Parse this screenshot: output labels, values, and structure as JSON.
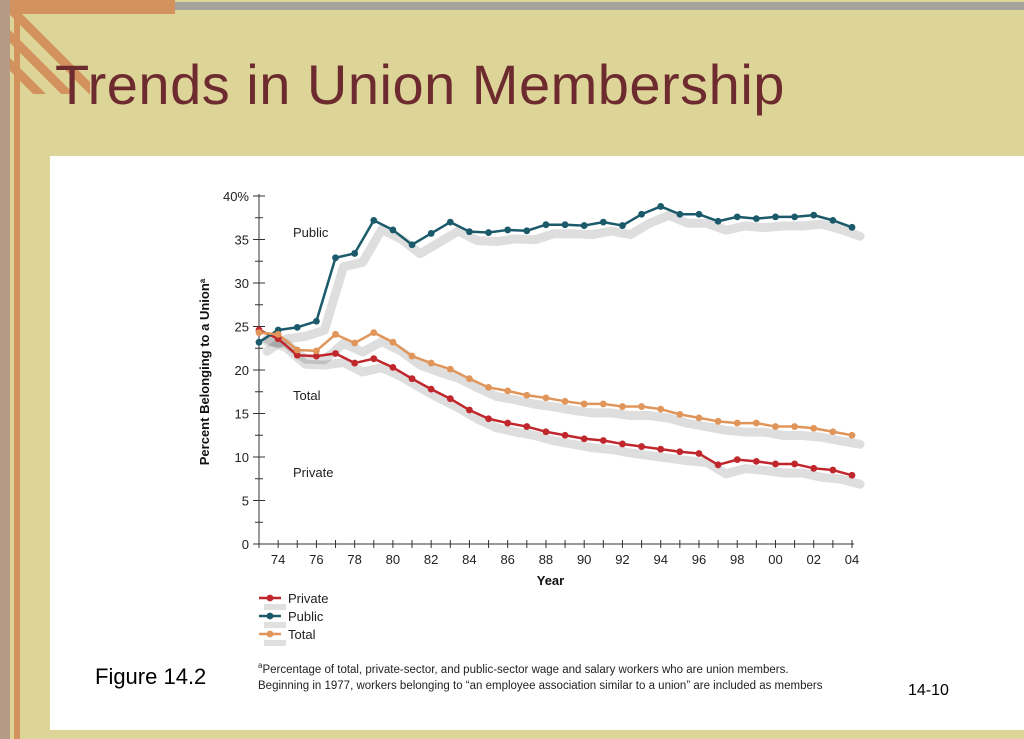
{
  "slide": {
    "title": "Trends in Union Membership",
    "figure_label": "Figure 14.2",
    "page_number": "14-10",
    "footnote_mark": "a",
    "footnote_line1": "Percentage of total, private-sector, and public-sector wage and salary workers who are union members.",
    "footnote_line2": "Beginning in 1977, workers belonging to “an employee association similar to a union” are included as members"
  },
  "colors": {
    "background": "#dcd597",
    "title": "#6e2b2f",
    "private": "#c0272d",
    "public": "#1b5a6b",
    "total": "#e0955a"
  },
  "chart_data": {
    "type": "line",
    "xlabel": "Year",
    "ylabel": "Percent Belonging to a Union",
    "ylabel_superscript": "a",
    "xlim": [
      1973,
      2004
    ],
    "ylim": [
      0,
      40
    ],
    "y_ticks": [
      0,
      5,
      10,
      15,
      20,
      25,
      30,
      35,
      40
    ],
    "y_tick_labels": [
      "0",
      "5",
      "10",
      "15",
      "20",
      "25",
      "30",
      "35",
      "40%"
    ],
    "x_ticks": [
      1974,
      1976,
      1978,
      1980,
      1982,
      1984,
      1986,
      1988,
      1990,
      1992,
      1994,
      1996,
      1998,
      2000,
      2002,
      2004
    ],
    "x_tick_labels": [
      "74",
      "76",
      "78",
      "80",
      "82",
      "84",
      "86",
      "88",
      "90",
      "92",
      "94",
      "96",
      "98",
      "00",
      "02",
      "04"
    ],
    "x": [
      1973,
      1974,
      1975,
      1976,
      1977,
      1978,
      1979,
      1980,
      1981,
      1982,
      1983,
      1984,
      1985,
      1986,
      1987,
      1988,
      1989,
      1990,
      1991,
      1992,
      1993,
      1994,
      1995,
      1996,
      1997,
      1998,
      1999,
      2000,
      2001,
      2002,
      2003,
      2004
    ],
    "series": [
      {
        "name": "Private",
        "color": "#c0272d",
        "inline_label": "Private",
        "values": [
          24.6,
          23.6,
          21.7,
          21.6,
          21.9,
          20.8,
          21.3,
          20.3,
          19.0,
          17.8,
          16.7,
          15.4,
          14.4,
          13.9,
          13.5,
          12.9,
          12.5,
          12.1,
          11.9,
          11.5,
          11.2,
          10.9,
          10.6,
          10.4,
          9.1,
          9.7,
          9.5,
          9.2,
          9.2,
          8.7,
          8.5,
          7.9
        ]
      },
      {
        "name": "Public",
        "color": "#1b5a6b",
        "inline_label": "Public",
        "values": [
          23.2,
          24.6,
          24.9,
          25.6,
          32.9,
          33.4,
          37.2,
          36.1,
          34.4,
          35.7,
          37.0,
          35.9,
          35.8,
          36.1,
          36.0,
          36.7,
          36.7,
          36.6,
          37.0,
          36.6,
          37.9,
          38.8,
          37.9,
          37.9,
          37.1,
          37.6,
          37.4,
          37.6,
          37.6,
          37.8,
          37.2,
          36.4
        ]
      },
      {
        "name": "Total",
        "color": "#e0955a",
        "inline_label": "Total",
        "values": [
          24.3,
          24.1,
          22.3,
          22.2,
          24.1,
          23.1,
          24.3,
          23.2,
          21.6,
          20.8,
          20.1,
          19.0,
          18.0,
          17.6,
          17.1,
          16.8,
          16.4,
          16.1,
          16.1,
          15.8,
          15.8,
          15.5,
          14.9,
          14.5,
          14.1,
          13.9,
          13.9,
          13.5,
          13.5,
          13.3,
          12.9,
          12.5
        ]
      }
    ],
    "legend": [
      "Private",
      "Public",
      "Total"
    ],
    "legend_position": "bottom-left"
  }
}
